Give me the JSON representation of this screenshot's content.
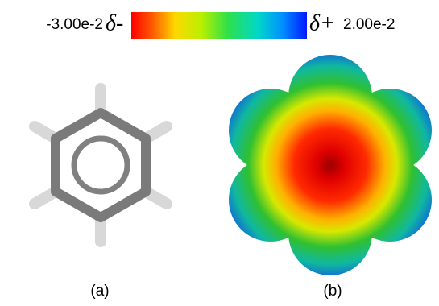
{
  "colorbar": {
    "min_label": "-3.00e-2",
    "min_symbol": "δ-",
    "max_symbol": "δ+",
    "max_label": "2.00e-2"
  },
  "panels": [
    {
      "label": "(a)"
    },
    {
      "label": "(b)"
    }
  ]
}
